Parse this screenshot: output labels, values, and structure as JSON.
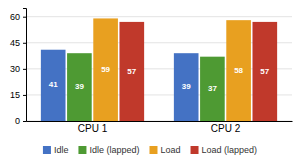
{
  "chart_data": {
    "type": "bar",
    "categories": [
      "CPU 1",
      "CPU 2"
    ],
    "series": [
      {
        "name": "Idle",
        "color": "#4472C4",
        "values": [
          41,
          39
        ]
      },
      {
        "name": "Idle (lapped)",
        "color": "#4E9A33",
        "values": [
          39,
          37
        ]
      },
      {
        "name": "Load",
        "color": "#E8A020",
        "values": [
          59,
          58
        ]
      },
      {
        "name": "Load (lapped)",
        "color": "#C0392B",
        "values": [
          57,
          57
        ]
      }
    ],
    "ylim": [
      0,
      65
    ],
    "yticks": [
      0,
      15,
      30,
      45,
      60
    ],
    "grid": true,
    "legend": "bottom",
    "data_labels": true
  }
}
